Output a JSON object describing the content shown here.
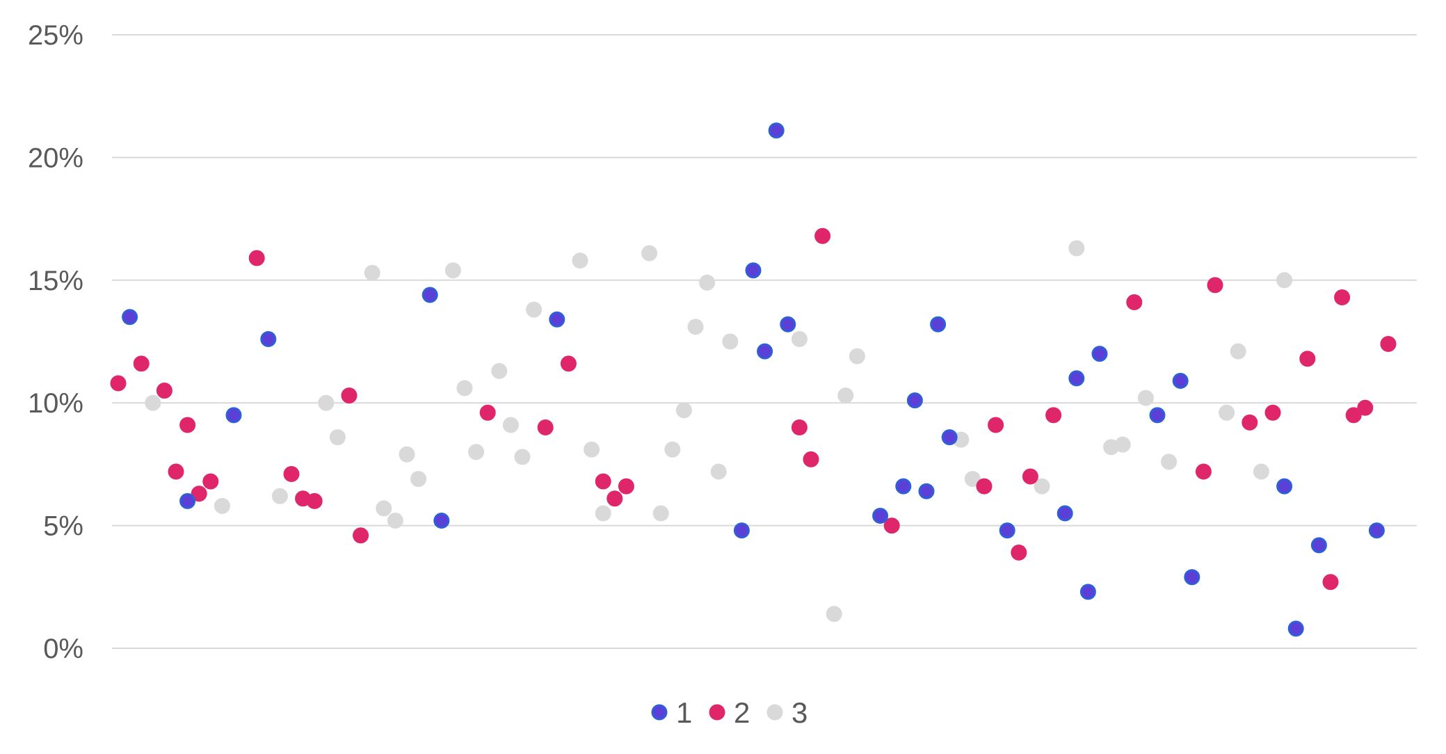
{
  "chart_data": {
    "type": "scatter",
    "title": "",
    "xlabel": "",
    "ylabel": "",
    "ylim": [
      0,
      25
    ],
    "y_ticks": [
      0,
      5,
      10,
      15,
      20,
      25
    ],
    "y_tick_labels": [
      "0%",
      "5%",
      "10%",
      "15%",
      "20%",
      "25%"
    ],
    "x_axis_labels_shown": false,
    "grid": "horizontal",
    "legend_position": "bottom",
    "series": [
      {
        "name": "1",
        "color": "#5b3fd6",
        "edge_color": "#2f5fd8",
        "points": [
          {
            "x": 2,
            "y": 13.5
          },
          {
            "x": 7,
            "y": 6.0
          },
          {
            "x": 11,
            "y": 9.5
          },
          {
            "x": 14,
            "y": 12.6
          },
          {
            "x": 28,
            "y": 14.4
          },
          {
            "x": 29,
            "y": 5.2
          },
          {
            "x": 39,
            "y": 13.4
          },
          {
            "x": 55,
            "y": 4.8
          },
          {
            "x": 56,
            "y": 15.4
          },
          {
            "x": 57,
            "y": 12.1
          },
          {
            "x": 58,
            "y": 21.1
          },
          {
            "x": 59,
            "y": 13.2
          },
          {
            "x": 67,
            "y": 5.4
          },
          {
            "x": 69,
            "y": 6.6
          },
          {
            "x": 70,
            "y": 10.1
          },
          {
            "x": 71,
            "y": 6.4
          },
          {
            "x": 72,
            "y": 13.2
          },
          {
            "x": 73,
            "y": 8.6
          },
          {
            "x": 78,
            "y": 4.8
          },
          {
            "x": 83,
            "y": 5.5
          },
          {
            "x": 84,
            "y": 11.0
          },
          {
            "x": 85,
            "y": 2.3
          },
          {
            "x": 86,
            "y": 12.0
          },
          {
            "x": 91,
            "y": 9.5
          },
          {
            "x": 93,
            "y": 10.9
          },
          {
            "x": 94,
            "y": 2.9
          },
          {
            "x": 102,
            "y": 6.6
          },
          {
            "x": 103,
            "y": 0.8
          },
          {
            "x": 105,
            "y": 4.2
          },
          {
            "x": 110,
            "y": 4.8
          }
        ]
      },
      {
        "name": "2",
        "color": "#e0266a",
        "edge_color": "#e0266a",
        "points": [
          {
            "x": 1,
            "y": 10.8
          },
          {
            "x": 3,
            "y": 11.6
          },
          {
            "x": 5,
            "y": 10.5
          },
          {
            "x": 6,
            "y": 7.2
          },
          {
            "x": 7,
            "y": 9.1
          },
          {
            "x": 8,
            "y": 6.3
          },
          {
            "x": 9,
            "y": 6.8
          },
          {
            "x": 13,
            "y": 15.9
          },
          {
            "x": 16,
            "y": 7.1
          },
          {
            "x": 17,
            "y": 6.1
          },
          {
            "x": 18,
            "y": 6.0
          },
          {
            "x": 21,
            "y": 10.3
          },
          {
            "x": 22,
            "y": 4.6
          },
          {
            "x": 33,
            "y": 9.6
          },
          {
            "x": 38,
            "y": 9.0
          },
          {
            "x": 40,
            "y": 11.6
          },
          {
            "x": 43,
            "y": 6.8
          },
          {
            "x": 44,
            "y": 6.1
          },
          {
            "x": 45,
            "y": 6.6
          },
          {
            "x": 60,
            "y": 9.0
          },
          {
            "x": 61,
            "y": 7.7
          },
          {
            "x": 62,
            "y": 16.8
          },
          {
            "x": 68,
            "y": 5.0
          },
          {
            "x": 76,
            "y": 6.6
          },
          {
            "x": 77,
            "y": 9.1
          },
          {
            "x": 79,
            "y": 3.9
          },
          {
            "x": 80,
            "y": 7.0
          },
          {
            "x": 82,
            "y": 9.5
          },
          {
            "x": 89,
            "y": 14.1
          },
          {
            "x": 95,
            "y": 7.2
          },
          {
            "x": 96,
            "y": 14.8
          },
          {
            "x": 99,
            "y": 9.2
          },
          {
            "x": 101,
            "y": 9.6
          },
          {
            "x": 104,
            "y": 11.8
          },
          {
            "x": 106,
            "y": 2.7
          },
          {
            "x": 107,
            "y": 14.3
          },
          {
            "x": 108,
            "y": 9.5
          },
          {
            "x": 109,
            "y": 9.8
          },
          {
            "x": 111,
            "y": 12.4
          }
        ]
      },
      {
        "name": "3",
        "color": "#d9d9d9",
        "edge_color": "#d9d9d9",
        "points": [
          {
            "x": 4,
            "y": 10.0
          },
          {
            "x": 10,
            "y": 5.8
          },
          {
            "x": 15,
            "y": 6.2
          },
          {
            "x": 19,
            "y": 10.0
          },
          {
            "x": 20,
            "y": 8.6
          },
          {
            "x": 23,
            "y": 15.3
          },
          {
            "x": 24,
            "y": 5.7
          },
          {
            "x": 25,
            "y": 5.2
          },
          {
            "x": 26,
            "y": 7.9
          },
          {
            "x": 27,
            "y": 6.9
          },
          {
            "x": 30,
            "y": 15.4
          },
          {
            "x": 31,
            "y": 10.6
          },
          {
            "x": 32,
            "y": 8.0
          },
          {
            "x": 34,
            "y": 11.3
          },
          {
            "x": 35,
            "y": 9.1
          },
          {
            "x": 36,
            "y": 7.8
          },
          {
            "x": 37,
            "y": 13.8
          },
          {
            "x": 41,
            "y": 15.8
          },
          {
            "x": 42,
            "y": 8.1
          },
          {
            "x": 43,
            "y": 5.5
          },
          {
            "x": 47,
            "y": 16.1
          },
          {
            "x": 48,
            "y": 5.5
          },
          {
            "x": 49,
            "y": 8.1
          },
          {
            "x": 50,
            "y": 9.7
          },
          {
            "x": 51,
            "y": 13.1
          },
          {
            "x": 52,
            "y": 14.9
          },
          {
            "x": 53,
            "y": 7.2
          },
          {
            "x": 54,
            "y": 12.5
          },
          {
            "x": 60,
            "y": 12.6
          },
          {
            "x": 63,
            "y": 1.4
          },
          {
            "x": 64,
            "y": 10.3
          },
          {
            "x": 65,
            "y": 11.9
          },
          {
            "x": 74,
            "y": 8.5
          },
          {
            "x": 75,
            "y": 6.9
          },
          {
            "x": 81,
            "y": 6.6
          },
          {
            "x": 84,
            "y": 16.3
          },
          {
            "x": 87,
            "y": 8.2
          },
          {
            "x": 88,
            "y": 8.3
          },
          {
            "x": 90,
            "y": 10.2
          },
          {
            "x": 92,
            "y": 7.6
          },
          {
            "x": 97,
            "y": 9.6
          },
          {
            "x": 98,
            "y": 12.1
          },
          {
            "x": 100,
            "y": 7.2
          },
          {
            "x": 102,
            "y": 15.0
          }
        ]
      }
    ]
  }
}
